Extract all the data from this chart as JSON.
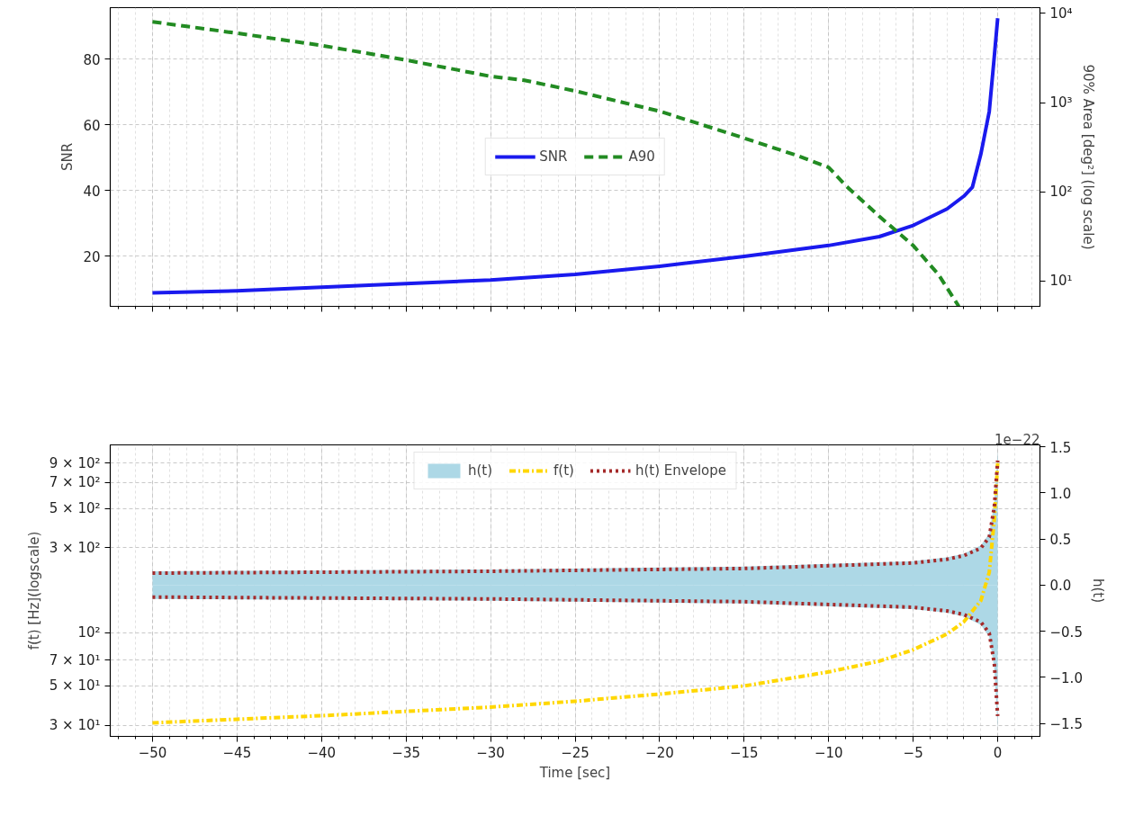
{
  "chart_data": [
    {
      "type": "line",
      "ylabel": "SNR",
      "y2label": "90% Area [deg²] (log scale)",
      "xlim": [
        -52.5,
        2.5
      ],
      "xticks": [
        {
          "value": -50,
          "label": null
        },
        {
          "value": -45,
          "label": null
        },
        {
          "value": -40,
          "label": null
        },
        {
          "value": -35,
          "label": null
        },
        {
          "value": -30,
          "label": null
        },
        {
          "value": -25,
          "label": null
        },
        {
          "value": -20,
          "label": null
        },
        {
          "value": -15,
          "label": null
        },
        {
          "value": -10,
          "label": null
        },
        {
          "value": -5,
          "label": null
        },
        {
          "value": 0,
          "label": null
        }
      ],
      "ylim": [
        4.8,
        95.6
      ],
      "yticks": [
        20,
        40,
        60,
        80
      ],
      "y2lim": [
        5.2,
        11600
      ],
      "y2ticks": [
        {
          "value": 10,
          "label": "10¹"
        },
        {
          "value": 100,
          "label": "10²"
        },
        {
          "value": 1000,
          "label": "10³"
        },
        {
          "value": 10000,
          "label": "10⁴"
        }
      ],
      "log": "y2",
      "grid": true,
      "legend": "center",
      "tick_labels": "y",
      "series": [
        {
          "name": "SNR",
          "axis": "y",
          "color": "#1a1aee",
          "line_style": "solid",
          "x": [
            -50,
            -45,
            -40,
            -35,
            -30,
            -25,
            -20,
            -15,
            -10,
            -7,
            -5,
            -3,
            -2,
            -1.5,
            -1,
            -0.5,
            -0.2,
            0
          ],
          "values": [
            8.9,
            9.5,
            10.6,
            11.7,
            12.8,
            14.5,
            17.0,
            20.0,
            23.3,
            26.0,
            29.4,
            34.4,
            38.3,
            41,
            51,
            64,
            80.8,
            92.4
          ]
        },
        {
          "name": "A90",
          "axis": "y2",
          "color": "#228b22",
          "line_style": "dashed",
          "x": [
            -50,
            -45,
            -40,
            -35,
            -30,
            -28,
            -25,
            -20,
            -15,
            -12,
            -10,
            -9,
            -7,
            -5,
            -3.5,
            -2.3
          ],
          "values": [
            8050,
            6000,
            4370,
            3000,
            1970,
            1780,
            1350,
            800,
            400,
            260,
            188,
            118,
            53,
            25,
            11.8,
            5.2
          ]
        }
      ]
    },
    {
      "type": "line",
      "xlabel": "Time [sec]",
      "ylabel": "f(t) [Hz](logscale)",
      "y2label": "h(t)",
      "xlim": [
        -52.5,
        2.5
      ],
      "xticks": [
        {
          "value": -50,
          "label": "−50"
        },
        {
          "value": -45,
          "label": "−45"
        },
        {
          "value": -40,
          "label": "−40"
        },
        {
          "value": -35,
          "label": "−35"
        },
        {
          "value": -30,
          "label": "−30"
        },
        {
          "value": -25,
          "label": "−25"
        },
        {
          "value": -20,
          "label": "−20"
        },
        {
          "value": -15,
          "label": "−15"
        },
        {
          "value": -10,
          "label": "−10"
        },
        {
          "value": -5,
          "label": "−5"
        },
        {
          "value": 0,
          "label": "0"
        }
      ],
      "ylim": [
        26,
        1140
      ],
      "yticks": [
        {
          "value": 30,
          "label": "3 × 10¹"
        },
        {
          "value": 50,
          "label": "5 × 10¹"
        },
        {
          "value": 70,
          "label": "7 × 10¹"
        },
        {
          "value": 100,
          "label": "10²"
        },
        {
          "value": 300,
          "label": "3 × 10²"
        },
        {
          "value": 500,
          "label": "5 × 10²"
        },
        {
          "value": 700,
          "label": "7 × 10²"
        },
        {
          "value": 900,
          "label": "9 × 10²"
        }
      ],
      "y2lim": [
        -1.64,
        1.52
      ],
      "y2ticks": [
        {
          "value": -1.5,
          "label": "−1.5"
        },
        {
          "value": -1.0,
          "label": "−1.0"
        },
        {
          "value": -0.5,
          "label": "−0.5"
        },
        {
          "value": 0,
          "label": "0.0"
        },
        {
          "value": 0.5,
          "label": "0.5"
        },
        {
          "value": 1.0,
          "label": "1.0"
        },
        {
          "value": 1.5,
          "label": "1.5"
        }
      ],
      "log": "y",
      "grid": true,
      "legend": "top",
      "annotations": [
        "1e−22"
      ],
      "series": [
        {
          "name": "h(t)",
          "type": "area",
          "axis": "y2",
          "color": "#add8e6",
          "x": [
            -50,
            -40,
            -30,
            -25,
            -20,
            -15,
            -10,
            -5,
            -3,
            -2,
            -1,
            -0.5,
            -0.2,
            0
          ],
          "values": [
            0.15,
            0.16,
            0.17,
            0.18,
            0.19,
            0.2,
            0.23,
            0.26,
            0.3,
            0.34,
            0.43,
            0.56,
            0.9,
            1.45
          ]
        },
        {
          "type": "area",
          "axis": "y2",
          "color": "#add8e6",
          "x": [
            -50,
            -40,
            -30,
            -25,
            -20,
            -15,
            -10,
            -5,
            -3,
            -2,
            -1,
            -0.5,
            -0.2,
            0
          ],
          "values": [
            -0.15,
            -0.16,
            -0.17,
            -0.18,
            -0.19,
            -0.2,
            -0.23,
            -0.26,
            -0.3,
            -0.34,
            -0.43,
            -0.56,
            -0.9,
            -1.55
          ]
        },
        {
          "name": "f(t)",
          "axis": "y",
          "color": "#ffd700",
          "line_style": "dashdot",
          "x": [
            -50,
            -40,
            -30,
            -25,
            -20,
            -15,
            -10,
            -7,
            -5,
            -3,
            -2,
            -1,
            -0.5,
            -0.2,
            0
          ],
          "values": [
            31,
            34,
            38,
            41,
            45,
            50,
            60,
            69,
            80,
            98,
            115,
            151,
            218,
            435,
            900
          ]
        },
        {
          "name": "h(t) Envelope",
          "axis": "y2",
          "color": "#a52a2a",
          "line_style": "dotted",
          "x": [
            -50,
            -40,
            -30,
            -25,
            -20,
            -15,
            -10,
            -5,
            -3,
            -2,
            -1,
            -0.5,
            -0.2,
            0
          ],
          "values": [
            0.13,
            0.14,
            0.15,
            0.16,
            0.17,
            0.18,
            0.21,
            0.24,
            0.28,
            0.32,
            0.4,
            0.52,
            0.85,
            1.35
          ]
        },
        {
          "axis": "y2",
          "color": "#a52a2a",
          "line_style": "dotted",
          "x": [
            -50,
            -40,
            -30,
            -25,
            -20,
            -15,
            -10,
            -5,
            -3,
            -2,
            -1,
            -0.5,
            -0.2,
            0
          ],
          "values": [
            -0.13,
            -0.14,
            -0.15,
            -0.16,
            -0.17,
            -0.18,
            -0.21,
            -0.24,
            -0.28,
            -0.32,
            -0.4,
            -0.52,
            -0.85,
            -1.42
          ]
        }
      ]
    }
  ]
}
